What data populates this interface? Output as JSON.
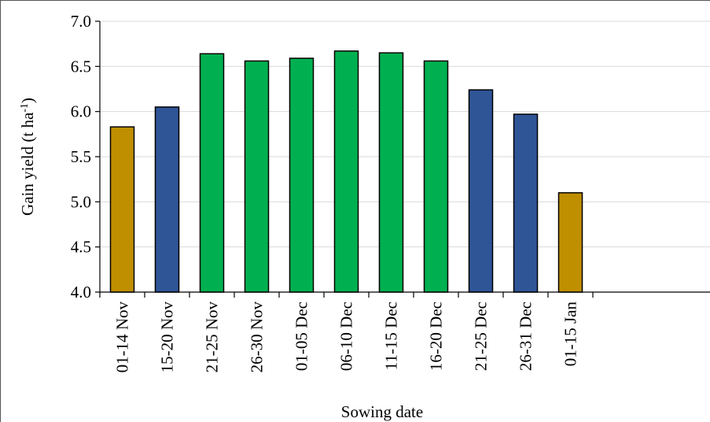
{
  "chart_data": {
    "type": "bar",
    "categories": [
      "01-14 Nov",
      "15-20 Nov",
      "21-25 Nov",
      "26-30 Nov",
      "01-05 Dec",
      "06-10 Dec",
      "11-15 Dec",
      "16-20 Dec",
      "21-25 Dec",
      "26-31 Dec",
      "01-15 Jan"
    ],
    "values": [
      5.83,
      6.05,
      6.64,
      6.56,
      6.59,
      6.67,
      6.65,
      6.56,
      6.24,
      5.97,
      5.1
    ],
    "bar_colors": [
      "#bf8f00",
      "#2f5597",
      "#00b050",
      "#00b050",
      "#00b050",
      "#00b050",
      "#00b050",
      "#00b050",
      "#2f5597",
      "#2f5597",
      "#bf8f00"
    ],
    "xlabel": "Sowing date",
    "ylabel": {
      "main": "Gain yield (t ha",
      "sup": "-1",
      "end": ")"
    },
    "ylim": [
      4.0,
      7.0
    ],
    "yticks": [
      "4.0",
      "4.5",
      "5.0",
      "5.5",
      "6.0",
      "6.5",
      "7.0"
    ],
    "grid": true,
    "legend": "none"
  }
}
